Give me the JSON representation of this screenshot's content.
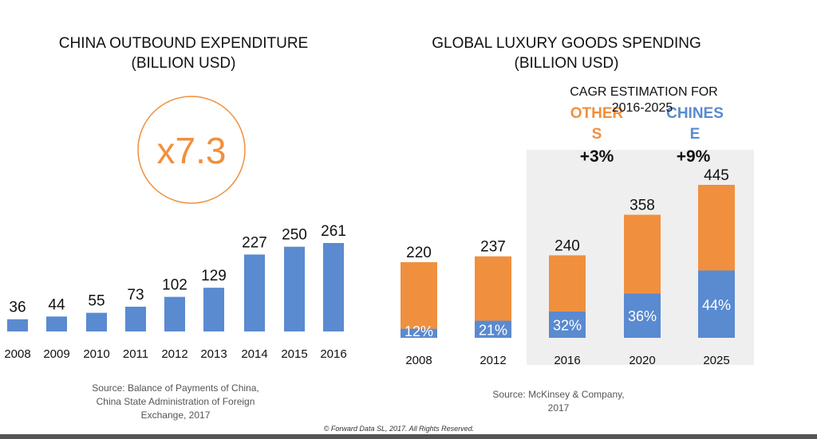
{
  "colors": {
    "blue": "#5a8ad0",
    "orange": "#f0903e",
    "shade": "#efefef",
    "text": "#111111"
  },
  "footer": "© Forward Data SL, 2017. All Rights Reserved.",
  "chart_data": [
    {
      "type": "bar",
      "title": "CHINA OUTBOUND EXPENDITURE",
      "subtitle": "(BILLION USD)",
      "categories": [
        "2008",
        "2009",
        "2010",
        "2011",
        "2012",
        "2013",
        "2014",
        "2015",
        "2016"
      ],
      "values": [
        36,
        44,
        55,
        73,
        102,
        129,
        227,
        250,
        261
      ],
      "annotation": "x7.3",
      "source": [
        "Source: Balance of Payments of China,",
        "China State Administration of Foreign",
        "Exchange, 2017"
      ],
      "grid": false
    },
    {
      "type": "bar",
      "stacked": true,
      "title": "GLOBAL LUXURY GOODS SPENDING",
      "subtitle": "(BILLION USD)",
      "categories": [
        "2008",
        "2012",
        "2016",
        "2020",
        "2025"
      ],
      "totals": [
        220,
        237,
        240,
        358,
        445
      ],
      "series": [
        {
          "name": "CHINESE",
          "share_labels": [
            "12%",
            "21%",
            "32%",
            "36%",
            "44%"
          ],
          "share": [
            12,
            21,
            32,
            36,
            44
          ]
        },
        {
          "name": "OTHERS"
        }
      ],
      "cagr": {
        "title": [
          "CAGR ESTIMATION FOR",
          "2016-2025"
        ],
        "others_label": [
          "OTHER",
          "S"
        ],
        "others_value": "+3%",
        "chinese_label": [
          "CHINES",
          "E"
        ],
        "chinese_value": "+9%"
      },
      "source": [
        "Source: McKinsey & Company,",
        "2017"
      ],
      "grid": false
    }
  ]
}
